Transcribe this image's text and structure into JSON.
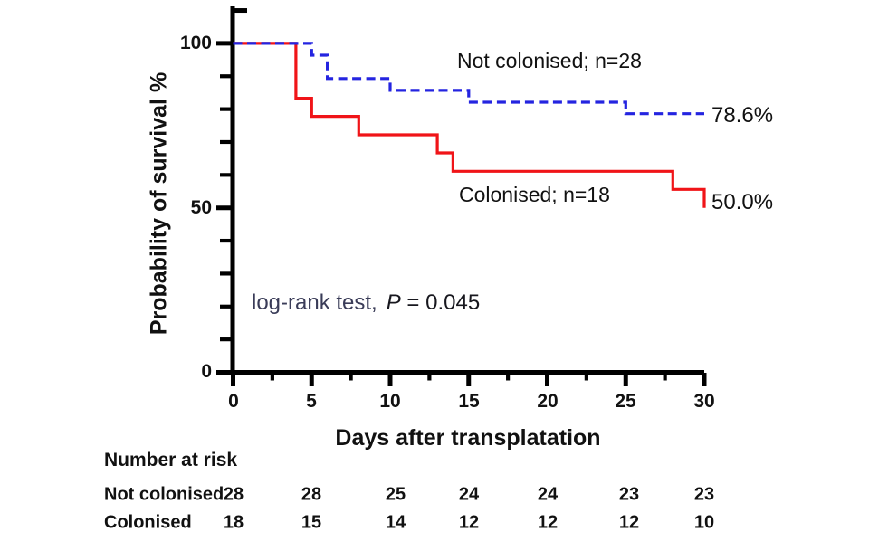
{
  "colors": {
    "red_solid": "#f01418",
    "blue_dashed": "#2424e0",
    "axis": "#000000",
    "annotation_blue": "#3a3c58",
    "text": "#111111"
  },
  "chart_data": {
    "type": "line",
    "subtype": "kaplan-meier-step-curve",
    "title": "",
    "xlabel": "Days after transplatation",
    "ylabel": "Probability of survival %",
    "xlim": [
      0,
      30
    ],
    "ylim": [
      0,
      110
    ],
    "grid": false,
    "legend_position": "inline-labels",
    "x_major_ticks": [
      0,
      5,
      10,
      15,
      20,
      25,
      30
    ],
    "x_minor_ticks": [
      2.5,
      7.5,
      12.5,
      17.5,
      22.5,
      27.5
    ],
    "y_major_ticks": [
      0,
      50,
      100
    ],
    "y_minor_ticks": [
      10,
      20,
      30,
      40,
      60,
      70,
      80,
      90,
      110
    ],
    "x_tick_labels": [
      "0",
      "5",
      "10",
      "15",
      "20",
      "25",
      "30"
    ],
    "y_tick_labels": [
      "100",
      "50",
      "0"
    ],
    "series": [
      {
        "name": "Not colonised",
        "label": "Not colonised; n=28",
        "n": 28,
        "color": "#2424e0",
        "dash": "dashed",
        "end_label": "78.6%",
        "steps": [
          [
            0,
            100
          ],
          [
            5,
            100
          ],
          [
            5,
            96.4
          ],
          [
            6,
            96.4
          ],
          [
            6,
            89.3
          ],
          [
            10,
            89.3
          ],
          [
            10,
            85.7
          ],
          [
            15,
            85.7
          ],
          [
            15,
            82.1
          ],
          [
            25,
            82.1
          ],
          [
            25,
            78.6
          ],
          [
            30,
            78.6
          ]
        ]
      },
      {
        "name": "Colonised",
        "label": "Colonised; n=18",
        "n": 18,
        "color": "#f01418",
        "dash": "solid",
        "end_label": "50.0%",
        "steps": [
          [
            0,
            100
          ],
          [
            4,
            100
          ],
          [
            4,
            83.3
          ],
          [
            5,
            83.3
          ],
          [
            5,
            77.8
          ],
          [
            8,
            77.8
          ],
          [
            8,
            72.2
          ],
          [
            13,
            72.2
          ],
          [
            13,
            66.7
          ],
          [
            14,
            66.7
          ],
          [
            14,
            61.1
          ],
          [
            28,
            61.1
          ],
          [
            28,
            55.6
          ],
          [
            30,
            55.6
          ],
          [
            30,
            50.0
          ]
        ]
      }
    ],
    "annotation": {
      "prefix": "log-rank test,",
      "p_label": "P",
      "p_value": " = 0.045"
    }
  },
  "risk_table": {
    "title": "Number at risk",
    "columns_days": [
      0,
      5,
      10,
      15,
      20,
      25,
      30
    ],
    "rows": [
      {
        "label": "Not colonised",
        "values": [
          "28",
          "28",
          "25",
          "24",
          "24",
          "23",
          "23"
        ]
      },
      {
        "label": "Colonised",
        "values": [
          "18",
          "15",
          "14",
          "12",
          "12",
          "12",
          "10"
        ]
      }
    ]
  }
}
